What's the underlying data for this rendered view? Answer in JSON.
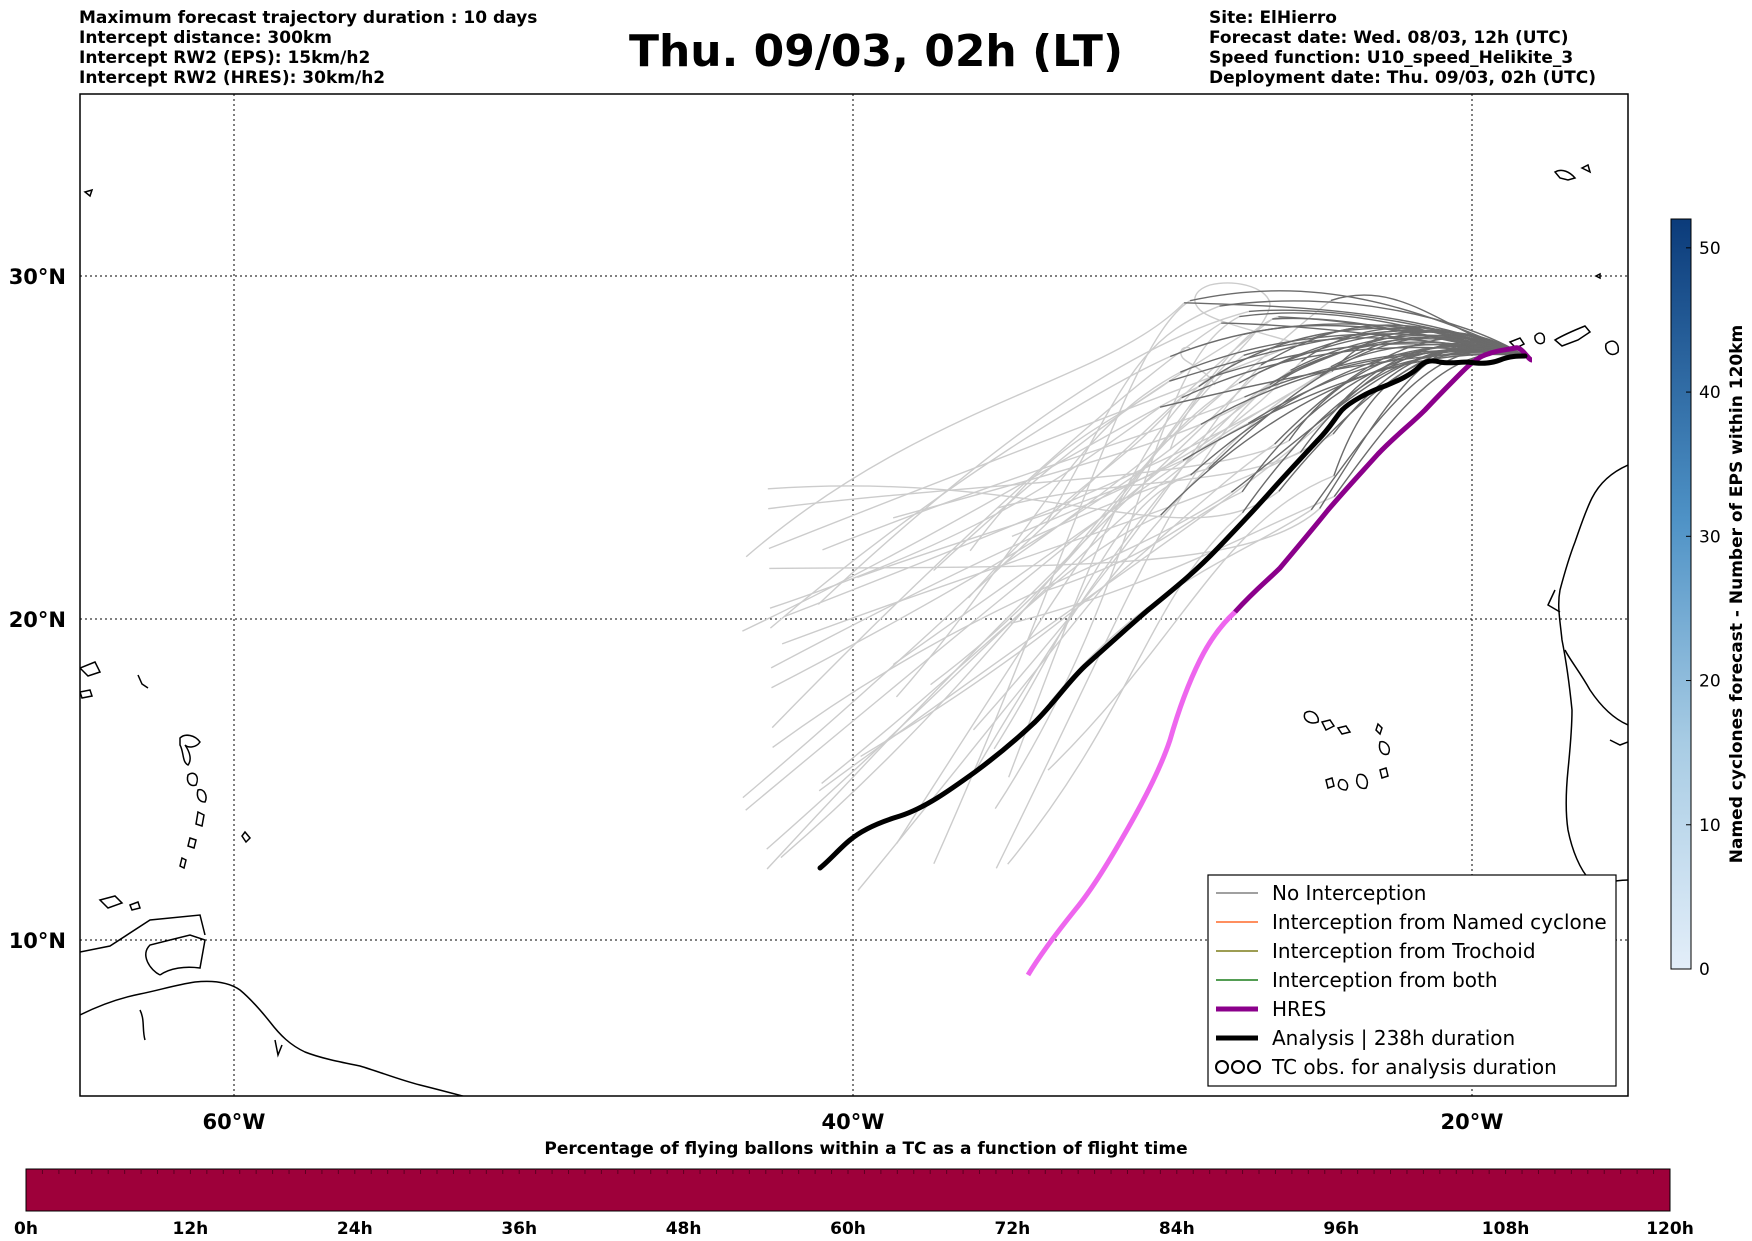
{
  "header": {
    "left": [
      "Maximum forecast trajectory duration : 10 days",
      "Intercept distance: 300km",
      "Intercept RW2 (EPS):  15km/h2",
      "Intercept RW2 (HRES): 30km/h2"
    ],
    "title": "Thu. 09/03, 02h (LT)",
    "right": [
      "Site: ElHierro",
      "Forecast date: Wed. 08/03, 12h (UTC)",
      "Speed function: U10_speed_Helikite_3",
      "Deployment date: Thu. 09/03, 02h (UTC)"
    ]
  },
  "map": {
    "lon_labels": [
      "60°W",
      "40°W",
      "20°W"
    ],
    "lat_labels": [
      "30°N",
      "20°N",
      "10°N"
    ],
    "lon_range": [
      -65,
      -15
    ],
    "lat_range": [
      5,
      34.3
    ]
  },
  "legend": {
    "items": [
      {
        "label": "No Interception",
        "color": "#808080",
        "style": "thin"
      },
      {
        "label": "Interception from Named cyclone",
        "color": "#ff6a2a",
        "style": "thin"
      },
      {
        "label": "Interception from Trochoid",
        "color": "#7d7d1a",
        "style": "thin"
      },
      {
        "label": "Interception from both",
        "color": "#1a7d1a",
        "style": "thin"
      },
      {
        "label": "HRES",
        "color": "#8b008b",
        "style": "thick"
      },
      {
        "label": "Analysis | 238h duration",
        "color": "#000000",
        "style": "thick"
      },
      {
        "label": "TC obs. for analysis duration",
        "color": "#000000",
        "style": "symbol"
      }
    ]
  },
  "colorbar": {
    "label": "Named cyclones forecast - Number of EPS within 120km",
    "ticks": [
      "0",
      "10",
      "20",
      "30",
      "40",
      "50"
    ],
    "range": [
      0,
      52
    ],
    "color_low": "#e3eef9",
    "color_high": "#0b3b7a"
  },
  "hbar": {
    "title": "Percentage of flying ballons within a TC as a function of flight time",
    "ticks": [
      "0h",
      "12h",
      "24h",
      "36h",
      "48h",
      "60h",
      "72h",
      "84h",
      "96h",
      "108h",
      "120h"
    ],
    "color": "#9e003a"
  },
  "chart_data": {
    "type": "line",
    "title": "Thu. 09/03, 02h (LT)",
    "xlabel": "",
    "ylabel": "",
    "series": [
      {
        "name": "Analysis | 238h duration",
        "color": "#000000",
        "x": [
          -41,
          -40,
          -38,
          -36,
          -34,
          -32,
          -30,
          -28,
          -26,
          -24,
          -22,
          -20.5,
          -19.5,
          -18.2
        ],
        "y": [
          12.3,
          13.2,
          14.3,
          15.8,
          17.6,
          19.3,
          21.0,
          22.5,
          24.1,
          25.9,
          26.8,
          27.2,
          27.2,
          27.6
        ]
      },
      {
        "name": "HRES",
        "color": "#8b008b",
        "x": [
          -34.3,
          -33,
          -31.5,
          -30.5,
          -29.5,
          -28.5,
          -27.5,
          -25.5,
          -23.5,
          -22,
          -20.5,
          -19.5,
          -18.2
        ],
        "y": [
          8.9,
          11.0,
          14.0,
          17.5,
          20.0,
          20.8,
          21.8,
          23.4,
          25.2,
          26.1,
          27.0,
          27.2,
          27.6
        ]
      }
    ]
  }
}
